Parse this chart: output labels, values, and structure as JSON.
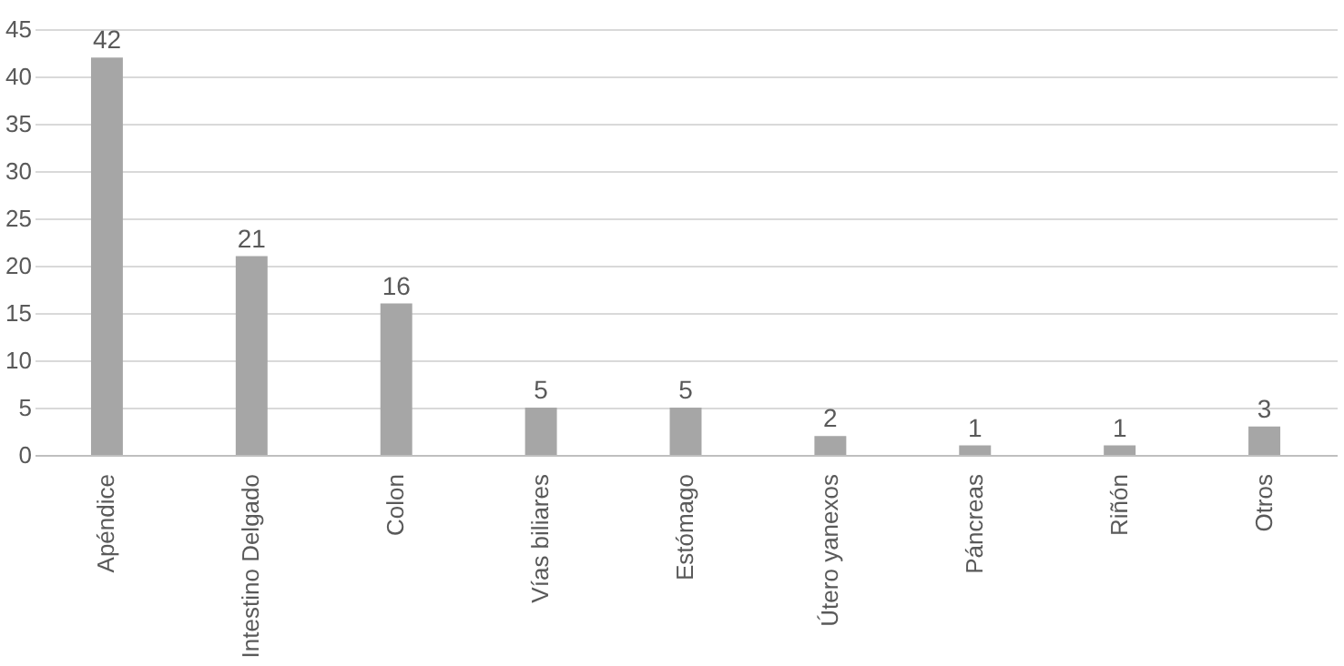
{
  "chart_data": {
    "type": "bar",
    "categories": [
      "Apéndice",
      "Intestino Delgado",
      "Colon",
      "Vías biliares",
      "Estómago",
      "Útero yanexos",
      "Páncreas",
      "Riñón",
      "Otros"
    ],
    "values": [
      42,
      21,
      16,
      5,
      5,
      2,
      1,
      1,
      3
    ],
    "color": "#a6a6a6",
    "ylim": [
      0,
      45
    ],
    "yticks": [
      0,
      5,
      10,
      15,
      20,
      25,
      30,
      35,
      40,
      45
    ],
    "grid": "y",
    "data_labels": true
  }
}
